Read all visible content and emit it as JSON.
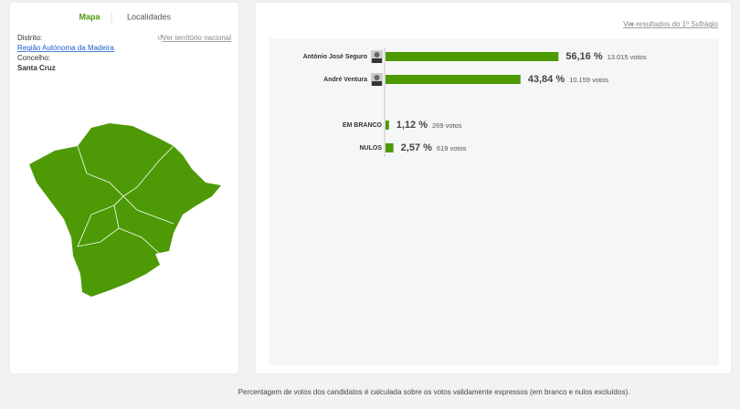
{
  "tabs": [
    "Mapa",
    "Localidades"
  ],
  "sidebar": {
    "district_label": "Distrito:",
    "district": "Região Autónoma da Madeira",
    "reset_link": "Ver território nacional",
    "municipality_label": "Concelho:",
    "municipality": "Santa Cruz"
  },
  "results_link": "Ver resultados do 1º Sufrágio",
  "chart_data": {
    "type": "bar",
    "orientation": "horizontal",
    "color": "#4d9a06",
    "categories": [
      "António José Seguro",
      "André Ventura",
      "EM BRANCO",
      "NULOS"
    ],
    "values": [
      56.16,
      43.84,
      1.12,
      2.57
    ],
    "value_labels": [
      "56,16 %",
      "43,84 %",
      "1,12 %",
      "2,57 %"
    ],
    "votes_labels": [
      "13.015 votos",
      "10.159 votos",
      "269 votos",
      "619 votos"
    ]
  },
  "footer": "Percentagem de votos dos candidatos é calculada sobre os votos validamente expressos (em branco e nulos excluídos)."
}
